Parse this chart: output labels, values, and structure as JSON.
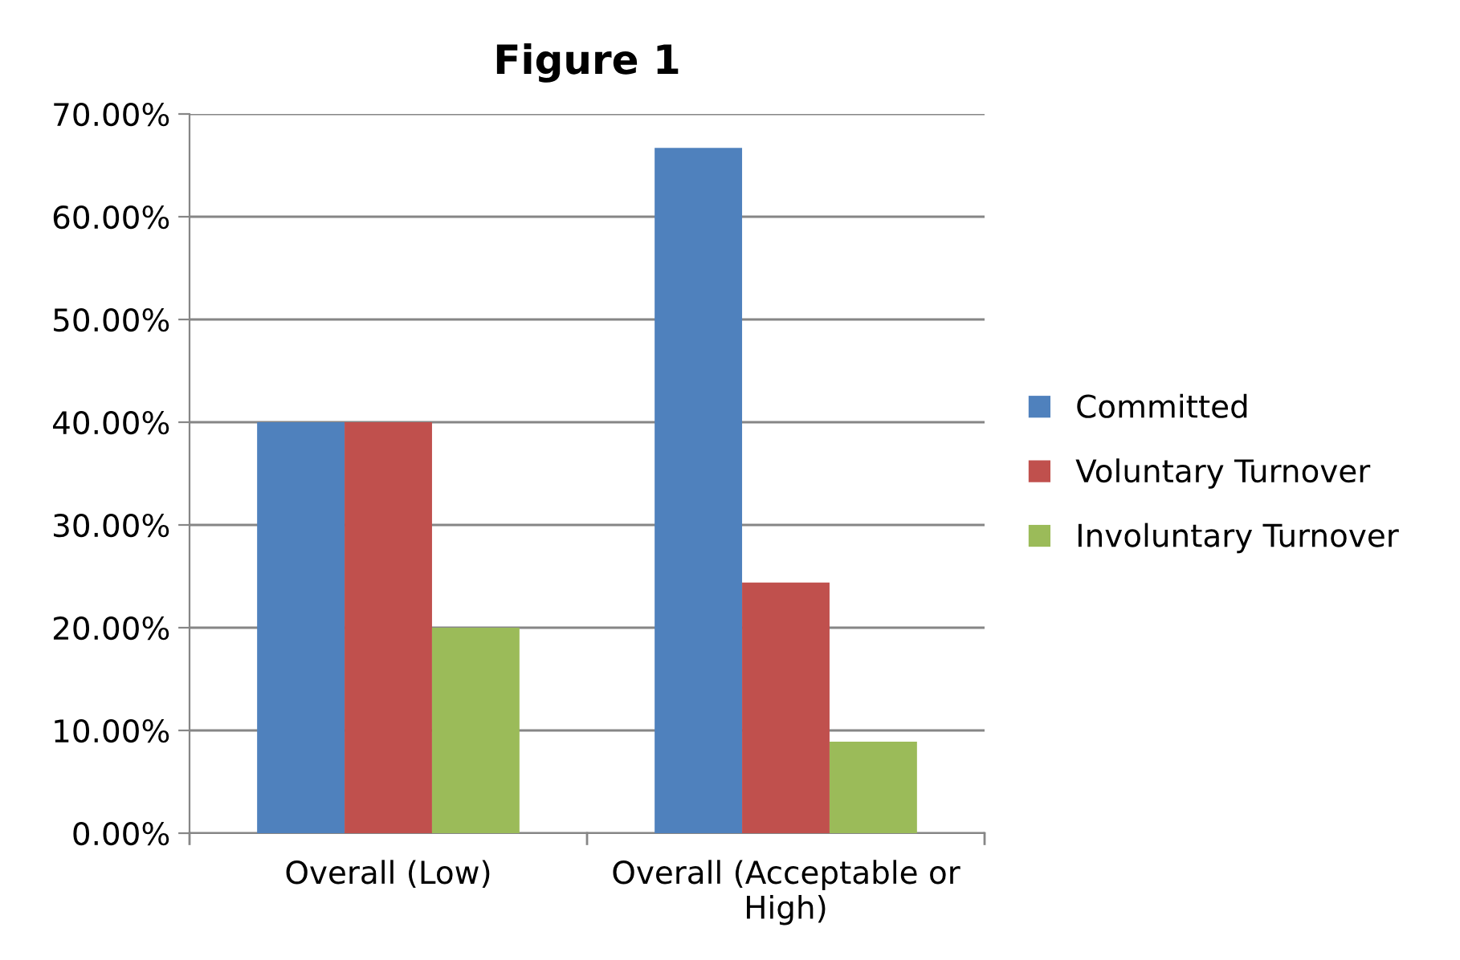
{
  "chart_data": {
    "type": "bar",
    "title": "Figure 1",
    "categories": [
      "Overall (Low)",
      "Overall (Acceptable or High)"
    ],
    "series": [
      {
        "name": "Committed",
        "color": "#4f81bd",
        "values": [
          40,
          66.7
        ]
      },
      {
        "name": "Voluntary Turnover",
        "color": "#c0504d",
        "values": [
          40,
          24.4
        ]
      },
      {
        "name": "Involuntary Turnover",
        "color": "#9bbb59",
        "values": [
          20,
          8.9
        ]
      }
    ],
    "ylim": [
      0,
      70
    ],
    "yticks": [
      {
        "value": 0,
        "label": "0.00%"
      },
      {
        "value": 10,
        "label": "10.00%"
      },
      {
        "value": 20,
        "label": "20.00%"
      },
      {
        "value": 30,
        "label": "30.00%"
      },
      {
        "value": 40,
        "label": "40.00%"
      },
      {
        "value": 50,
        "label": "50.00%"
      },
      {
        "value": 60,
        "label": "60.00%"
      },
      {
        "value": 70,
        "label": "70.00%"
      }
    ],
    "grid": "y",
    "legend": "right"
  }
}
